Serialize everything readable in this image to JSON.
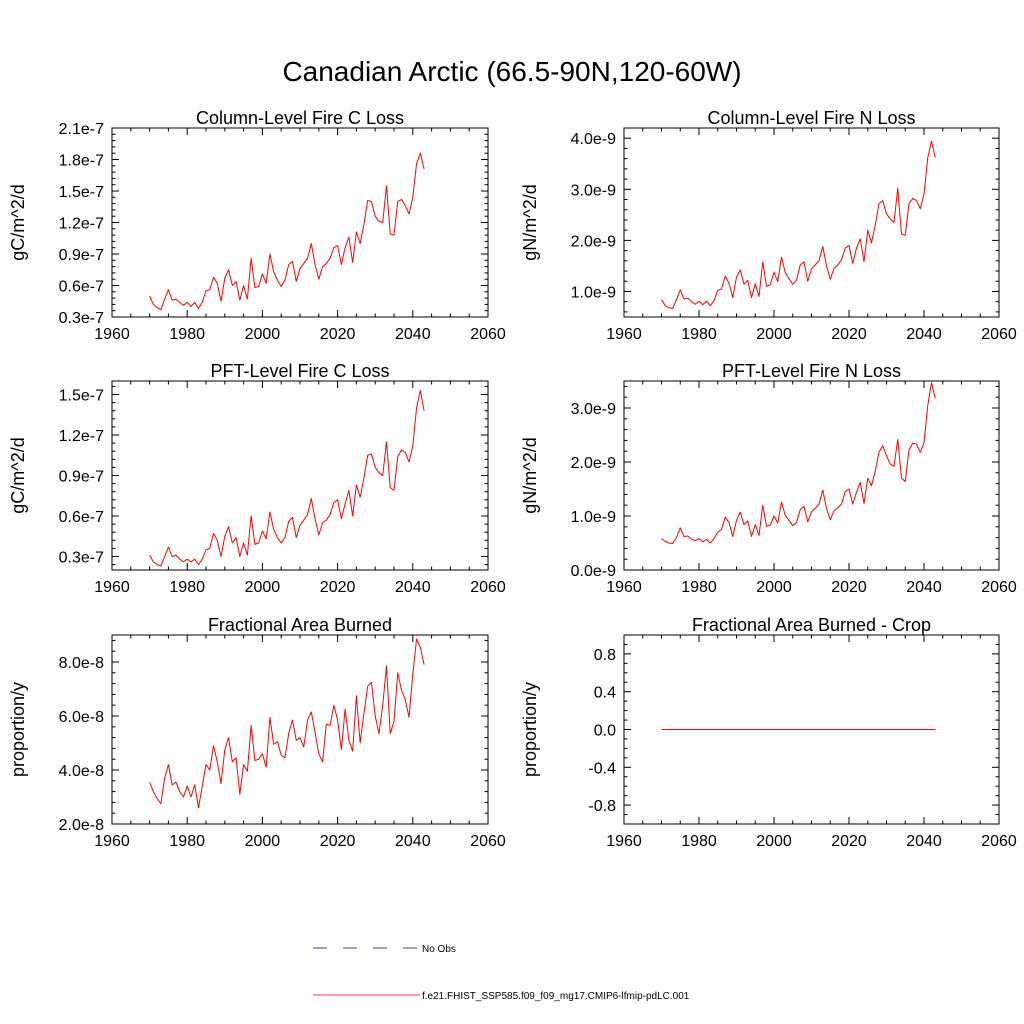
{
  "figure": {
    "title": "Canadian Arctic (66.5-90N,120-60W)"
  },
  "colors": {
    "model": "#ff0000",
    "obs": "#00008b",
    "axis": "#000000"
  },
  "legend": {
    "obs_label": "No Obs",
    "model_label": "f.e21.FHIST_SSP585.f09_f09_mg17.CMIP6-lfmip-pdLC.001"
  },
  "chart_data": [
    {
      "id": "col-fire-c",
      "type": "line",
      "title": "Column-Level Fire C Loss",
      "xlabel": "",
      "ylabel": "gC/m^2/d",
      "xlim": [
        1960,
        2060
      ],
      "ylim": [
        3e-08,
        2.1e-07
      ],
      "xticks": [
        1960,
        1980,
        2000,
        2020,
        2040,
        2060
      ],
      "xtick_labels": [
        "1960",
        "1980",
        "2000",
        "2020",
        "2040",
        "2060"
      ],
      "yticks": [
        3e-08,
        6e-08,
        9e-08,
        1.2e-07,
        1.5e-07,
        1.8e-07,
        2.1e-07
      ],
      "ytick_labels": [
        "0.3e-7",
        "0.6e-7",
        "0.9e-7",
        "1.2e-7",
        "1.5e-7",
        "1.8e-7",
        "2.1e-7"
      ],
      "yminor": 6e-09,
      "x_start": 1970,
      "series": [
        {
          "name": "f.e21.FHIST_SSP585.f09_f09_mg17.CMIP6-lfmip-pdLC.001",
          "values": [
            5e-08,
            4.2e-08,
            3.9e-08,
            3.7e-08,
            4.7e-08,
            5.6e-08,
            4.6e-08,
            4.7e-08,
            4.4e-08,
            4.1e-08,
            4.4e-08,
            4e-08,
            4.4e-08,
            3.8e-08,
            4.4e-08,
            5.5e-08,
            5.6e-08,
            6.8e-08,
            6.2e-08,
            4.5e-08,
            6.7e-08,
            7.5e-08,
            6e-08,
            6.4e-08,
            4.6e-08,
            6e-08,
            4.7e-08,
            8.6e-08,
            5.8e-08,
            5.9e-08,
            7.1e-08,
            6.2e-08,
            9e-08,
            7.3e-08,
            6.5e-08,
            5.9e-08,
            6.5e-08,
            8e-08,
            8.3e-08,
            6.4e-08,
            7.6e-08,
            8.1e-08,
            8.6e-08,
            1e-07,
            8e-08,
            6.6e-08,
            7.8e-08,
            8.1e-08,
            8.6e-08,
            9.6e-08,
            9.8e-08,
            8e-08,
            9.6e-08,
            1.06e-07,
            8.2e-08,
            1.11e-07,
            1e-07,
            1.18e-07,
            1.41e-07,
            1.4e-07,
            1.26e-07,
            1.21e-07,
            1.2e-07,
            1.55e-07,
            1.09e-07,
            1.08e-07,
            1.4e-07,
            1.42e-07,
            1.36e-07,
            1.28e-07,
            1.44e-07,
            1.76e-07,
            1.86e-07,
            1.71e-07
          ]
        }
      ]
    },
    {
      "id": "col-fire-n",
      "type": "line",
      "title": "Column-Level Fire N Loss",
      "xlabel": "",
      "ylabel": "gN/m^2/d",
      "xlim": [
        1960,
        2060
      ],
      "ylim": [
        5e-10,
        4.2e-09
      ],
      "xticks": [
        1960,
        1980,
        2000,
        2020,
        2040,
        2060
      ],
      "xtick_labels": [
        "1960",
        "1980",
        "2000",
        "2020",
        "2040",
        "2060"
      ],
      "yticks": [
        1e-09,
        2e-09,
        3e-09,
        4e-09
      ],
      "ytick_labels": [
        "1.0e-9",
        "2.0e-9",
        "3.0e-9",
        "4.0e-9"
      ],
      "yminor": 2e-10,
      "x_start": 1970,
      "series": [
        {
          "name": "f.e21.FHIST_SSP585.f09_f09_mg17.CMIP6-lfmip-pdLC.001",
          "values": [
            8.4e-10,
            7.2e-10,
            6.8e-10,
            6.7e-10,
            8.4e-10,
            1.03e-09,
            8.5e-10,
            8.7e-10,
            8e-10,
            7.5e-10,
            8.1e-10,
            7.4e-10,
            8.1e-10,
            7.2e-10,
            8.2e-10,
            1.02e-09,
            1.05e-09,
            1.3e-09,
            1.16e-09,
            8.8e-10,
            1.28e-09,
            1.42e-09,
            1.14e-09,
            1.22e-09,
            8.8e-10,
            1.15e-09,
            9e-10,
            1.58e-09,
            1.1e-09,
            1.13e-09,
            1.38e-09,
            1.19e-09,
            1.67e-09,
            1.37e-09,
            1.25e-09,
            1.14e-09,
            1.22e-09,
            1.52e-09,
            1.58e-09,
            1.2e-09,
            1.44e-09,
            1.52e-09,
            1.6e-09,
            1.88e-09,
            1.5e-09,
            1.24e-09,
            1.45e-09,
            1.52e-09,
            1.62e-09,
            1.85e-09,
            1.9e-09,
            1.55e-09,
            1.85e-09,
            2.03e-09,
            1.58e-09,
            2.2e-09,
            1.95e-09,
            2.3e-09,
            2.72e-09,
            2.78e-09,
            2.52e-09,
            2.42e-09,
            2.35e-09,
            3.02e-09,
            2.12e-09,
            2.1e-09,
            2.72e-09,
            2.82e-09,
            2.78e-09,
            2.62e-09,
            2.9e-09,
            3.62e-09,
            3.94e-09,
            3.62e-09
          ]
        }
      ]
    },
    {
      "id": "pft-fire-c",
      "type": "line",
      "title": "PFT-Level Fire C Loss",
      "xlabel": "",
      "ylabel": "gC/m^2/d",
      "xlim": [
        1960,
        2060
      ],
      "ylim": [
        2e-08,
        1.6e-07
      ],
      "xticks": [
        1960,
        1980,
        2000,
        2020,
        2040,
        2060
      ],
      "xtick_labels": [
        "1960",
        "1980",
        "2000",
        "2020",
        "2040",
        "2060"
      ],
      "yticks": [
        3e-08,
        6e-08,
        9e-08,
        1.2e-07,
        1.5e-07
      ],
      "ytick_labels": [
        "0.3e-7",
        "0.6e-7",
        "0.9e-7",
        "1.2e-7",
        "1.5e-7"
      ],
      "yminor": 6e-09,
      "x_start": 1970,
      "series": [
        {
          "name": "f.e21.FHIST_SSP585.f09_f09_mg17.CMIP6-lfmip-pdLC.001",
          "values": [
            3.1e-08,
            2.6e-08,
            2.4e-08,
            2.3e-08,
            3e-08,
            3.7e-08,
            3e-08,
            3.1e-08,
            2.8e-08,
            2.6e-08,
            2.8e-08,
            2.6e-08,
            2.8e-08,
            2.4e-08,
            2.8e-08,
            3.5e-08,
            3.6e-08,
            4.7e-08,
            4.2e-08,
            3e-08,
            4.5e-08,
            5.2e-08,
            4e-08,
            4.4e-08,
            3e-08,
            4e-08,
            3.1e-08,
            6e-08,
            3.9e-08,
            4e-08,
            4.9e-08,
            4.3e-08,
            6.3e-08,
            5e-08,
            4.4e-08,
            4e-08,
            4.4e-08,
            5.6e-08,
            5.9e-08,
            4.4e-08,
            5.3e-08,
            5.7e-08,
            6.1e-08,
            7.3e-08,
            5.8e-08,
            4.6e-08,
            5.5e-08,
            5.7e-08,
            6.1e-08,
            7e-08,
            7.2e-08,
            5.8e-08,
            6.9e-08,
            7.9e-08,
            6e-08,
            8.3e-08,
            7.4e-08,
            8.8e-08,
            1.05e-07,
            1.06e-07,
            9.6e-08,
            9.2e-08,
            9e-08,
            1.15e-07,
            8.1e-08,
            7.9e-08,
            1.04e-07,
            1.09e-07,
            1.07e-07,
            1e-07,
            1.12e-07,
            1.4e-07,
            1.53e-07,
            1.38e-07
          ]
        }
      ]
    },
    {
      "id": "pft-fire-n",
      "type": "line",
      "title": "PFT-Level Fire N Loss",
      "xlabel": "",
      "ylabel": "gN/m^2/d",
      "xlim": [
        1960,
        2060
      ],
      "ylim": [
        0.0,
        3.5e-09
      ],
      "xticks": [
        1960,
        1980,
        2000,
        2020,
        2040,
        2060
      ],
      "xtick_labels": [
        "1960",
        "1980",
        "2000",
        "2020",
        "2040",
        "2060"
      ],
      "yticks": [
        0.0,
        1e-09,
        2e-09,
        3e-09
      ],
      "ytick_labels": [
        "0.0e-9",
        "1.0e-9",
        "2.0e-9",
        "3.0e-9"
      ],
      "yminor": 2e-10,
      "x_start": 1970,
      "series": [
        {
          "name": "f.e21.FHIST_SSP585.f09_f09_mg17.CMIP6-lfmip-pdLC.001",
          "values": [
            5.8e-10,
            5.3e-10,
            5e-10,
            4.9e-10,
            6e-10,
            7.8e-10,
            6.2e-10,
            6.3e-10,
            5.7e-10,
            5.4e-10,
            5.8e-10,
            5.2e-10,
            5.7e-10,
            5e-10,
            5.8e-10,
            7e-10,
            7.5e-10,
            9.8e-10,
            8.8e-10,
            6.2e-10,
            9.2e-10,
            1.07e-09,
            8.4e-10,
            9.1e-10,
            6.2e-10,
            8.4e-10,
            6.4e-10,
            1.2e-09,
            8.1e-10,
            8.3e-10,
            1e-09,
            8.7e-10,
            1.26e-09,
            1.01e-09,
            9.2e-10,
            8.2e-10,
            8.8e-10,
            1.12e-09,
            1.18e-09,
            8.9e-10,
            1.08e-09,
            1.14e-09,
            1.22e-09,
            1.48e-09,
            1.14e-09,
            9.3e-10,
            1.1e-09,
            1.15e-09,
            1.22e-09,
            1.45e-09,
            1.5e-09,
            1.22e-09,
            1.44e-09,
            1.62e-09,
            1.23e-09,
            1.7e-09,
            1.56e-09,
            1.83e-09,
            2.18e-09,
            2.3e-09,
            2.12e-09,
            1.96e-09,
            1.92e-09,
            2.42e-09,
            1.7e-09,
            1.64e-09,
            2.22e-09,
            2.35e-09,
            2.33e-09,
            2.18e-09,
            2.36e-09,
            3.05e-09,
            3.47e-09,
            3.18e-09
          ]
        }
      ]
    },
    {
      "id": "frac-area-burned",
      "type": "line",
      "title": "Fractional Area Burned",
      "xlabel": "",
      "ylabel": "proportion/y",
      "xlim": [
        1960,
        2060
      ],
      "ylim": [
        2e-08,
        9e-08
      ],
      "xticks": [
        1960,
        1980,
        2000,
        2020,
        2040,
        2060
      ],
      "xtick_labels": [
        "1960",
        "1980",
        "2000",
        "2020",
        "2040",
        "2060"
      ],
      "yticks": [
        2e-08,
        4e-08,
        6e-08,
        8e-08
      ],
      "ytick_labels": [
        "2.0e-8",
        "4.0e-8",
        "6.0e-8",
        "8.0e-8"
      ],
      "yminor": 4e-09,
      "x_start": 1970,
      "series": [
        {
          "name": "f.e21.FHIST_SSP585.f09_f09_mg17.CMIP6-lfmip-pdLC.001",
          "values": [
            3.55e-08,
            3.2e-08,
            2.95e-08,
            2.75e-08,
            3.7e-08,
            4.2e-08,
            3.45e-08,
            3.55e-08,
            3.2e-08,
            3e-08,
            3.4e-08,
            3e-08,
            3.45e-08,
            2.6e-08,
            3.4e-08,
            4.2e-08,
            4e-08,
            4.9e-08,
            4.3e-08,
            3.5e-08,
            4.75e-08,
            5.2e-08,
            4.3e-08,
            4.45e-08,
            3.1e-08,
            4.2e-08,
            3.95e-08,
            5.65e-08,
            4.35e-08,
            4.4e-08,
            4.6e-08,
            4.1e-08,
            5.95e-08,
            4.95e-08,
            5.05e-08,
            4.55e-08,
            4.45e-08,
            5.35e-08,
            5.85e-08,
            5.1e-08,
            5.2e-08,
            4.85e-08,
            5.85e-08,
            6.15e-08,
            5.4e-08,
            4.6e-08,
            4.3e-08,
            5.7e-08,
            5.65e-08,
            6.4e-08,
            5.85e-08,
            4.75e-08,
            6.25e-08,
            5.1e-08,
            4.7e-08,
            6.75e-08,
            5e-08,
            6.1e-08,
            7.1e-08,
            7.25e-08,
            6e-08,
            5.35e-08,
            6.4e-08,
            7.85e-08,
            5.35e-08,
            5.8e-08,
            7.6e-08,
            6.95e-08,
            6.6e-08,
            5.95e-08,
            7.55e-08,
            8.85e-08,
            8.55e-08,
            7.9e-08
          ]
        }
      ]
    },
    {
      "id": "frac-area-burned-crop",
      "type": "line",
      "title": "Fractional Area Burned - Crop",
      "xlabel": "",
      "ylabel": "proportion/y",
      "xlim": [
        1960,
        2060
      ],
      "ylim": [
        -1.0,
        1.0
      ],
      "xticks": [
        1960,
        1980,
        2000,
        2020,
        2040,
        2060
      ],
      "xtick_labels": [
        "1960",
        "1980",
        "2000",
        "2020",
        "2040",
        "2060"
      ],
      "yticks": [
        -0.8,
        -0.4,
        0.0,
        0.4,
        0.8
      ],
      "ytick_labels": [
        "-0.8",
        "-0.4",
        "0.0",
        "0.4",
        "0.8"
      ],
      "yminor": 0.1,
      "x_start": 1970,
      "series": [
        {
          "name": "f.e21.FHIST_SSP585.f09_f09_mg17.CMIP6-lfmip-pdLC.001",
          "values": [
            0,
            0,
            0,
            0,
            0,
            0,
            0,
            0,
            0,
            0,
            0,
            0,
            0,
            0,
            0,
            0,
            0,
            0,
            0,
            0,
            0,
            0,
            0,
            0,
            0,
            0,
            0,
            0,
            0,
            0,
            0,
            0,
            0,
            0,
            0,
            0,
            0,
            0,
            0,
            0,
            0,
            0,
            0,
            0,
            0,
            0,
            0,
            0,
            0,
            0,
            0,
            0,
            0,
            0,
            0,
            0,
            0,
            0,
            0,
            0,
            0,
            0,
            0,
            0,
            0,
            0,
            0,
            0,
            0,
            0,
            0,
            0,
            0,
            0
          ]
        }
      ]
    }
  ]
}
